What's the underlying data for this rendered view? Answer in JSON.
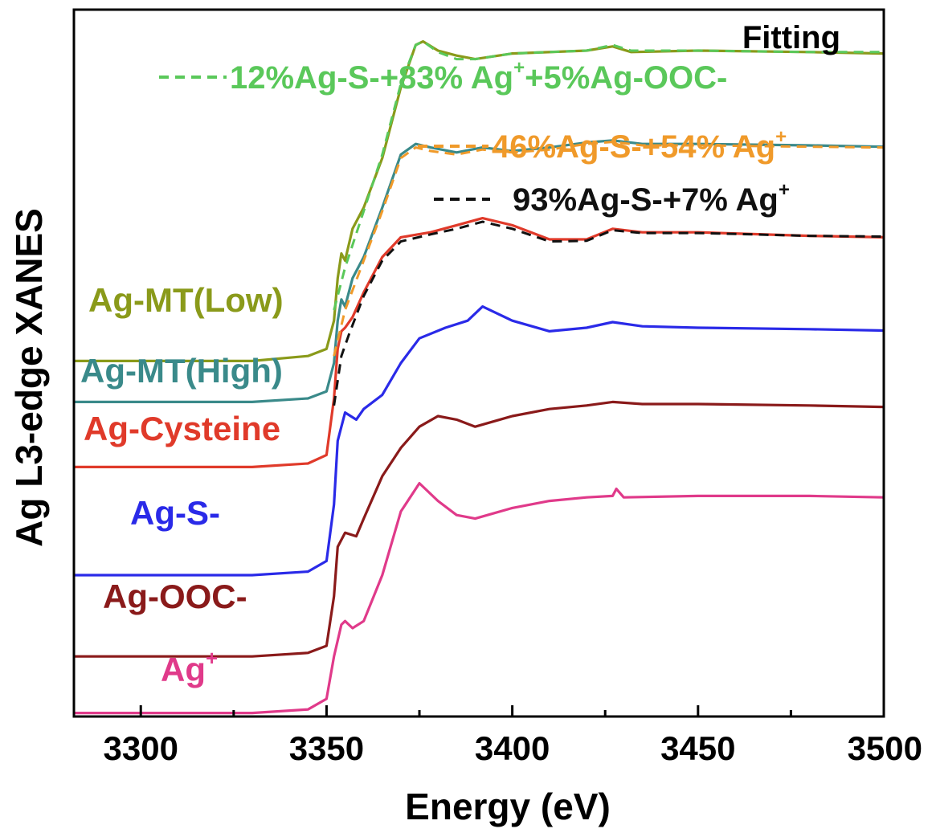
{
  "chart_data": {
    "type": "line",
    "title": "",
    "xlabel": "Energy (eV)",
    "ylabel": "Ag L3-edge XANES",
    "xlim": [
      3282,
      3500
    ],
    "ylim": [
      0,
      10
    ],
    "xticks": [
      3300,
      3350,
      3400,
      3450,
      3500
    ],
    "x_tick_labels": [
      "3300",
      "3350",
      "3400",
      "3450",
      "3500"
    ],
    "grid": false,
    "legend_title": "Fitting",
    "series": [
      {
        "name": "Ag-MT(Low)",
        "color": "#8a9a1a",
        "points": [
          [
            3282,
            5.03
          ],
          [
            3330,
            5.03
          ],
          [
            3345,
            5.1
          ],
          [
            3350,
            5.2
          ],
          [
            3352,
            5.6
          ],
          [
            3353,
            6.2
          ],
          [
            3354,
            6.55
          ],
          [
            3355,
            6.45
          ],
          [
            3357,
            6.9
          ],
          [
            3360,
            7.2
          ],
          [
            3365,
            7.9
          ],
          [
            3370,
            8.9
          ],
          [
            3374,
            9.5
          ],
          [
            3376,
            9.55
          ],
          [
            3380,
            9.42
          ],
          [
            3385,
            9.35
          ],
          [
            3390,
            9.3
          ],
          [
            3400,
            9.38
          ],
          [
            3420,
            9.42
          ],
          [
            3427,
            9.48
          ],
          [
            3432,
            9.4
          ],
          [
            3450,
            9.42
          ],
          [
            3480,
            9.4
          ],
          [
            3500,
            9.38
          ]
        ]
      },
      {
        "name": "Ag-MT(High)",
        "color": "#3a8a8a",
        "points": [
          [
            3282,
            4.45
          ],
          [
            3330,
            4.45
          ],
          [
            3345,
            4.5
          ],
          [
            3350,
            4.6
          ],
          [
            3352,
            5.0
          ],
          [
            3353,
            5.6
          ],
          [
            3354,
            5.9
          ],
          [
            3355,
            5.8
          ],
          [
            3357,
            6.2
          ],
          [
            3360,
            6.5
          ],
          [
            3365,
            7.2
          ],
          [
            3370,
            7.95
          ],
          [
            3374,
            8.1
          ],
          [
            3378,
            8.05
          ],
          [
            3385,
            7.98
          ],
          [
            3392,
            8.05
          ],
          [
            3400,
            8.0
          ],
          [
            3410,
            8.05
          ],
          [
            3420,
            8.12
          ],
          [
            3427,
            8.15
          ],
          [
            3435,
            8.1
          ],
          [
            3450,
            8.1
          ],
          [
            3480,
            8.08
          ],
          [
            3500,
            8.06
          ]
        ]
      },
      {
        "name": "Ag-Cysteine",
        "color": "#e03a2a",
        "points": [
          [
            3282,
            3.53
          ],
          [
            3330,
            3.53
          ],
          [
            3345,
            3.58
          ],
          [
            3350,
            3.7
          ],
          [
            3352,
            4.5
          ],
          [
            3353,
            5.2
          ],
          [
            3354,
            5.45
          ],
          [
            3355,
            5.5
          ],
          [
            3357,
            5.65
          ],
          [
            3360,
            6.0
          ],
          [
            3365,
            6.5
          ],
          [
            3370,
            6.78
          ],
          [
            3378,
            6.85
          ],
          [
            3385,
            6.95
          ],
          [
            3392,
            7.05
          ],
          [
            3400,
            6.95
          ],
          [
            3410,
            6.75
          ],
          [
            3420,
            6.75
          ],
          [
            3427,
            6.9
          ],
          [
            3435,
            6.85
          ],
          [
            3450,
            6.85
          ],
          [
            3480,
            6.8
          ],
          [
            3500,
            6.78
          ]
        ]
      },
      {
        "name": "Ag-S-",
        "color": "#2a2ae8",
        "points": [
          [
            3282,
            2.0
          ],
          [
            3330,
            2.0
          ],
          [
            3345,
            2.05
          ],
          [
            3350,
            2.2
          ],
          [
            3352,
            3.0
          ],
          [
            3353,
            3.9
          ],
          [
            3355,
            4.3
          ],
          [
            3358,
            4.2
          ],
          [
            3360,
            4.35
          ],
          [
            3365,
            4.55
          ],
          [
            3370,
            5.0
          ],
          [
            3375,
            5.35
          ],
          [
            3382,
            5.5
          ],
          [
            3388,
            5.6
          ],
          [
            3392,
            5.8
          ],
          [
            3400,
            5.6
          ],
          [
            3410,
            5.45
          ],
          [
            3420,
            5.5
          ],
          [
            3427,
            5.58
          ],
          [
            3435,
            5.52
          ],
          [
            3450,
            5.5
          ],
          [
            3480,
            5.48
          ],
          [
            3500,
            5.46
          ]
        ]
      },
      {
        "name": "Ag-OOC-",
        "color": "#8a1a1a",
        "points": [
          [
            3282,
            0.85
          ],
          [
            3330,
            0.85
          ],
          [
            3345,
            0.9
          ],
          [
            3350,
            1.0
          ],
          [
            3352,
            1.7
          ],
          [
            3353,
            2.4
          ],
          [
            3355,
            2.6
          ],
          [
            3358,
            2.55
          ],
          [
            3360,
            2.8
          ],
          [
            3365,
            3.4
          ],
          [
            3370,
            3.8
          ],
          [
            3375,
            4.1
          ],
          [
            3380,
            4.25
          ],
          [
            3385,
            4.2
          ],
          [
            3390,
            4.1
          ],
          [
            3400,
            4.25
          ],
          [
            3410,
            4.35
          ],
          [
            3420,
            4.4
          ],
          [
            3427,
            4.45
          ],
          [
            3435,
            4.42
          ],
          [
            3450,
            4.42
          ],
          [
            3480,
            4.4
          ],
          [
            3500,
            4.38
          ]
        ]
      },
      {
        "name": "Ag+",
        "color": "#e03a8a",
        "points": [
          [
            3282,
            0.05
          ],
          [
            3330,
            0.05
          ],
          [
            3345,
            0.1
          ],
          [
            3350,
            0.25
          ],
          [
            3352,
            0.85
          ],
          [
            3354,
            1.3
          ],
          [
            3355,
            1.35
          ],
          [
            3357,
            1.25
          ],
          [
            3360,
            1.35
          ],
          [
            3365,
            2.0
          ],
          [
            3370,
            2.9
          ],
          [
            3375,
            3.3
          ],
          [
            3380,
            3.05
          ],
          [
            3385,
            2.85
          ],
          [
            3390,
            2.8
          ],
          [
            3400,
            2.95
          ],
          [
            3410,
            3.05
          ],
          [
            3420,
            3.1
          ],
          [
            3427,
            3.12
          ],
          [
            3428,
            3.22
          ],
          [
            3430,
            3.1
          ],
          [
            3450,
            3.12
          ],
          [
            3480,
            3.12
          ],
          [
            3500,
            3.1
          ]
        ]
      }
    ],
    "fits": [
      {
        "name": "12%Ag-S-+83% Ag+ +5%Ag-OOC- fit",
        "color": "#5ac85a",
        "style": "dashed",
        "points": [
          [
            3352,
            5.75
          ],
          [
            3355,
            6.35
          ],
          [
            3360,
            7.15
          ],
          [
            3365,
            7.95
          ],
          [
            3370,
            8.95
          ],
          [
            3374,
            9.5
          ],
          [
            3376,
            9.55
          ],
          [
            3380,
            9.4
          ],
          [
            3385,
            9.3
          ],
          [
            3390,
            9.3
          ],
          [
            3400,
            9.38
          ],
          [
            3420,
            9.42
          ],
          [
            3427,
            9.5
          ],
          [
            3432,
            9.42
          ],
          [
            3450,
            9.42
          ],
          [
            3480,
            9.4
          ],
          [
            3500,
            9.4
          ]
        ]
      },
      {
        "name": "46%Ag-S-+54% Ag+ fit",
        "color": "#f09a2a",
        "style": "dashed",
        "points": [
          [
            3352,
            5.1
          ],
          [
            3355,
            5.75
          ],
          [
            3360,
            6.45
          ],
          [
            3365,
            7.15
          ],
          [
            3370,
            7.9
          ],
          [
            3374,
            8.05
          ],
          [
            3378,
            8.0
          ],
          [
            3385,
            7.95
          ],
          [
            3392,
            8.02
          ],
          [
            3400,
            7.98
          ],
          [
            3410,
            8.02
          ],
          [
            3420,
            8.1
          ],
          [
            3427,
            8.13
          ],
          [
            3435,
            8.08
          ],
          [
            3450,
            8.08
          ],
          [
            3480,
            8.06
          ],
          [
            3500,
            8.05
          ]
        ]
      },
      {
        "name": "93%Ag-S-+7% Ag+ fit",
        "color": "#111111",
        "style": "dashed",
        "points": [
          [
            3352,
            4.4
          ],
          [
            3354,
            5.1
          ],
          [
            3356,
            5.4
          ],
          [
            3360,
            5.95
          ],
          [
            3365,
            6.45
          ],
          [
            3370,
            6.72
          ],
          [
            3378,
            6.82
          ],
          [
            3385,
            6.9
          ],
          [
            3392,
            7.0
          ],
          [
            3400,
            6.9
          ],
          [
            3410,
            6.72
          ],
          [
            3420,
            6.73
          ],
          [
            3427,
            6.88
          ],
          [
            3435,
            6.84
          ],
          [
            3450,
            6.84
          ],
          [
            3480,
            6.8
          ],
          [
            3500,
            6.79
          ]
        ]
      }
    ],
    "legend_entries": [
      {
        "base": "12%Ag-S-+83% Ag",
        "sup": "+",
        "rest": "+5%Ag-OOC-",
        "color": "#5ac85a"
      },
      {
        "base": "46%Ag-S-+54% Ag",
        "sup": "+",
        "rest": "",
        "color": "#f09a2a"
      },
      {
        "base": "93%Ag-S-+7% Ag",
        "sup": "+",
        "rest": "",
        "color": "#111111"
      }
    ],
    "series_labels": [
      {
        "base": "Ag-MT(Low)",
        "sup": "",
        "color": "#8a9a1a"
      },
      {
        "base": "Ag-MT(High)",
        "sup": "",
        "color": "#3a8a8a"
      },
      {
        "base": "Ag-Cysteine",
        "sup": "",
        "color": "#e03a2a"
      },
      {
        "base": "Ag-S-",
        "sup": "",
        "color": "#2a2ae8"
      },
      {
        "base": "Ag-OOC-",
        "sup": "",
        "color": "#8a1a1a"
      },
      {
        "base": "Ag",
        "sup": "+",
        "color": "#e03a8a"
      }
    ]
  }
}
